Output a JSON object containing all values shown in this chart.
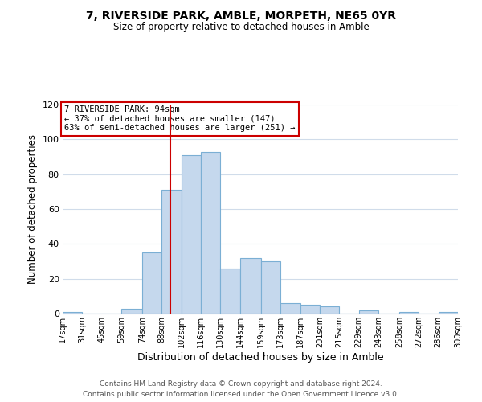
{
  "title": "7, RIVERSIDE PARK, AMBLE, MORPETH, NE65 0YR",
  "subtitle": "Size of property relative to detached houses in Amble",
  "xlabel": "Distribution of detached houses by size in Amble",
  "ylabel": "Number of detached properties",
  "bar_color": "#c5d8ed",
  "bar_edge_color": "#7bafd4",
  "background_color": "#ffffff",
  "grid_color": "#d0dcea",
  "annotation_box_color": "#cc0000",
  "annotation_line_color": "#cc0000",
  "property_value": 94,
  "annotation_title": "7 RIVERSIDE PARK: 94sqm",
  "annotation_line1": "← 37% of detached houses are smaller (147)",
  "annotation_line2": "63% of semi-detached houses are larger (251) →",
  "bins": [
    17,
    31,
    45,
    59,
    74,
    88,
    102,
    116,
    130,
    144,
    159,
    173,
    187,
    201,
    215,
    229,
    243,
    258,
    272,
    286,
    300
  ],
  "counts": [
    1,
    0,
    0,
    3,
    35,
    71,
    91,
    93,
    26,
    32,
    30,
    6,
    5,
    4,
    0,
    2,
    0,
    1,
    0,
    1
  ],
  "tick_labels": [
    "17sqm",
    "31sqm",
    "45sqm",
    "59sqm",
    "74sqm",
    "88sqm",
    "102sqm",
    "116sqm",
    "130sqm",
    "144sqm",
    "159sqm",
    "173sqm",
    "187sqm",
    "201sqm",
    "215sqm",
    "229sqm",
    "243sqm",
    "258sqm",
    "272sqm",
    "286sqm",
    "300sqm"
  ],
  "ylim": [
    0,
    120
  ],
  "yticks": [
    0,
    20,
    40,
    60,
    80,
    100,
    120
  ],
  "footer1": "Contains HM Land Registry data © Crown copyright and database right 2024.",
  "footer2": "Contains public sector information licensed under the Open Government Licence v3.0."
}
